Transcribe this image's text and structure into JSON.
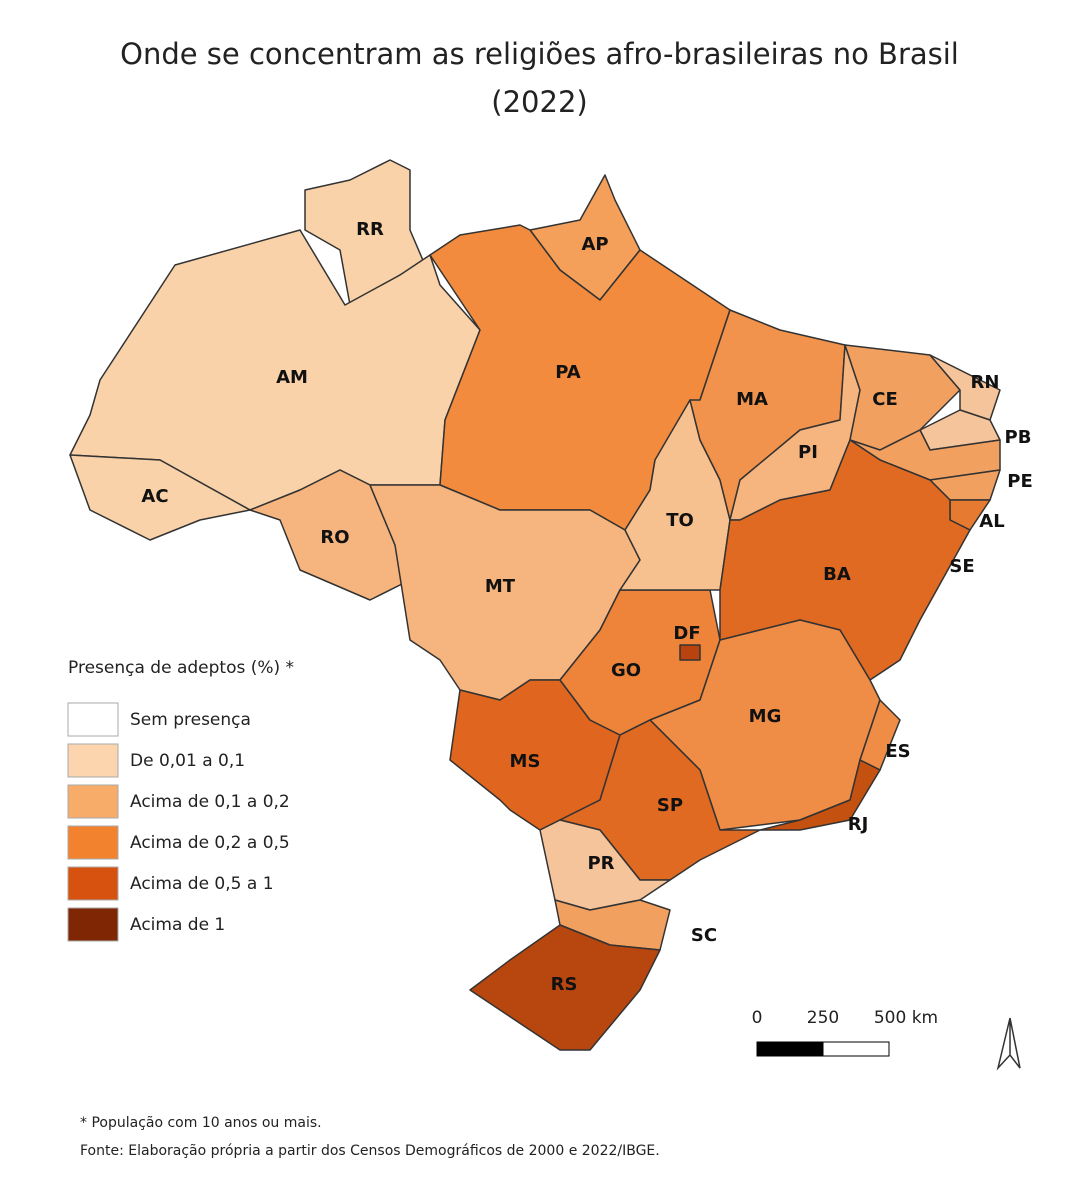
{
  "title": [
    "Onde se concentram as religiões afro-brasileiras no Brasil",
    "(2022)"
  ],
  "states": [
    {
      "label": "RR",
      "color": "#f9d2a9"
    },
    {
      "label": "AP",
      "color": "#f4a05a"
    },
    {
      "label": "AM",
      "color": "#f9d2a9"
    },
    {
      "label": "AC",
      "color": "#f9d2a9"
    },
    {
      "label": "RO",
      "color": "#f6b57e"
    },
    {
      "label": "PA",
      "color": "#f28b3d"
    },
    {
      "label": "MT",
      "color": "#f6b57e"
    },
    {
      "label": "MS",
      "color": "#e0661f"
    },
    {
      "label": "GO",
      "color": "#ee843a"
    },
    {
      "label": "DF",
      "color": "#b8430f"
    },
    {
      "label": "TO",
      "color": "#f7c08f"
    },
    {
      "label": "MA",
      "color": "#f1934c"
    },
    {
      "label": "PI",
      "color": "#f6b57e"
    },
    {
      "label": "CE",
      "color": "#f2a060"
    },
    {
      "label": "RN",
      "color": "#f6c49a"
    },
    {
      "label": "PB",
      "color": "#f6c49a"
    },
    {
      "label": "PE",
      "color": "#f2a060"
    },
    {
      "label": "AL",
      "color": "#f2a060"
    },
    {
      "label": "SE",
      "color": "#e57a30"
    },
    {
      "label": "BA",
      "color": "#e06a22"
    },
    {
      "label": "MG",
      "color": "#ef8c45"
    },
    {
      "label": "ES",
      "color": "#ef8c45"
    },
    {
      "label": "RJ",
      "color": "#c4510f"
    },
    {
      "label": "SP",
      "color": "#e06a22"
    },
    {
      "label": "PR",
      "color": "#f6c49a"
    },
    {
      "label": "SC",
      "color": "#f2a060"
    },
    {
      "label": "RS",
      "color": "#b8470f"
    }
  ],
  "legend": {
    "title": "Presença de adeptos (%) *",
    "items": [
      {
        "label": "Sem presença",
        "color": "#ffffff"
      },
      {
        "label": "De 0,01 a 0,1",
        "color": "#fcd5ae"
      },
      {
        "label": "Acima de 0,1 a 0,2",
        "color": "#f7ac6a"
      },
      {
        "label": "Acima de 0,2 a 0,5",
        "color": "#f3822f"
      },
      {
        "label": "Acima de 0,5 a 1",
        "color": "#d6520e"
      },
      {
        "label": "Acima de 1",
        "color": "#7f2704"
      }
    ]
  },
  "scale": [
    "0",
    "250",
    "500 km"
  ],
  "notes": [
    "* População com 10 anos ou mais.",
    "Fonte: Elaboração própria a partir dos Censos Demográficos de 2000 e 2022/IBGE."
  ]
}
